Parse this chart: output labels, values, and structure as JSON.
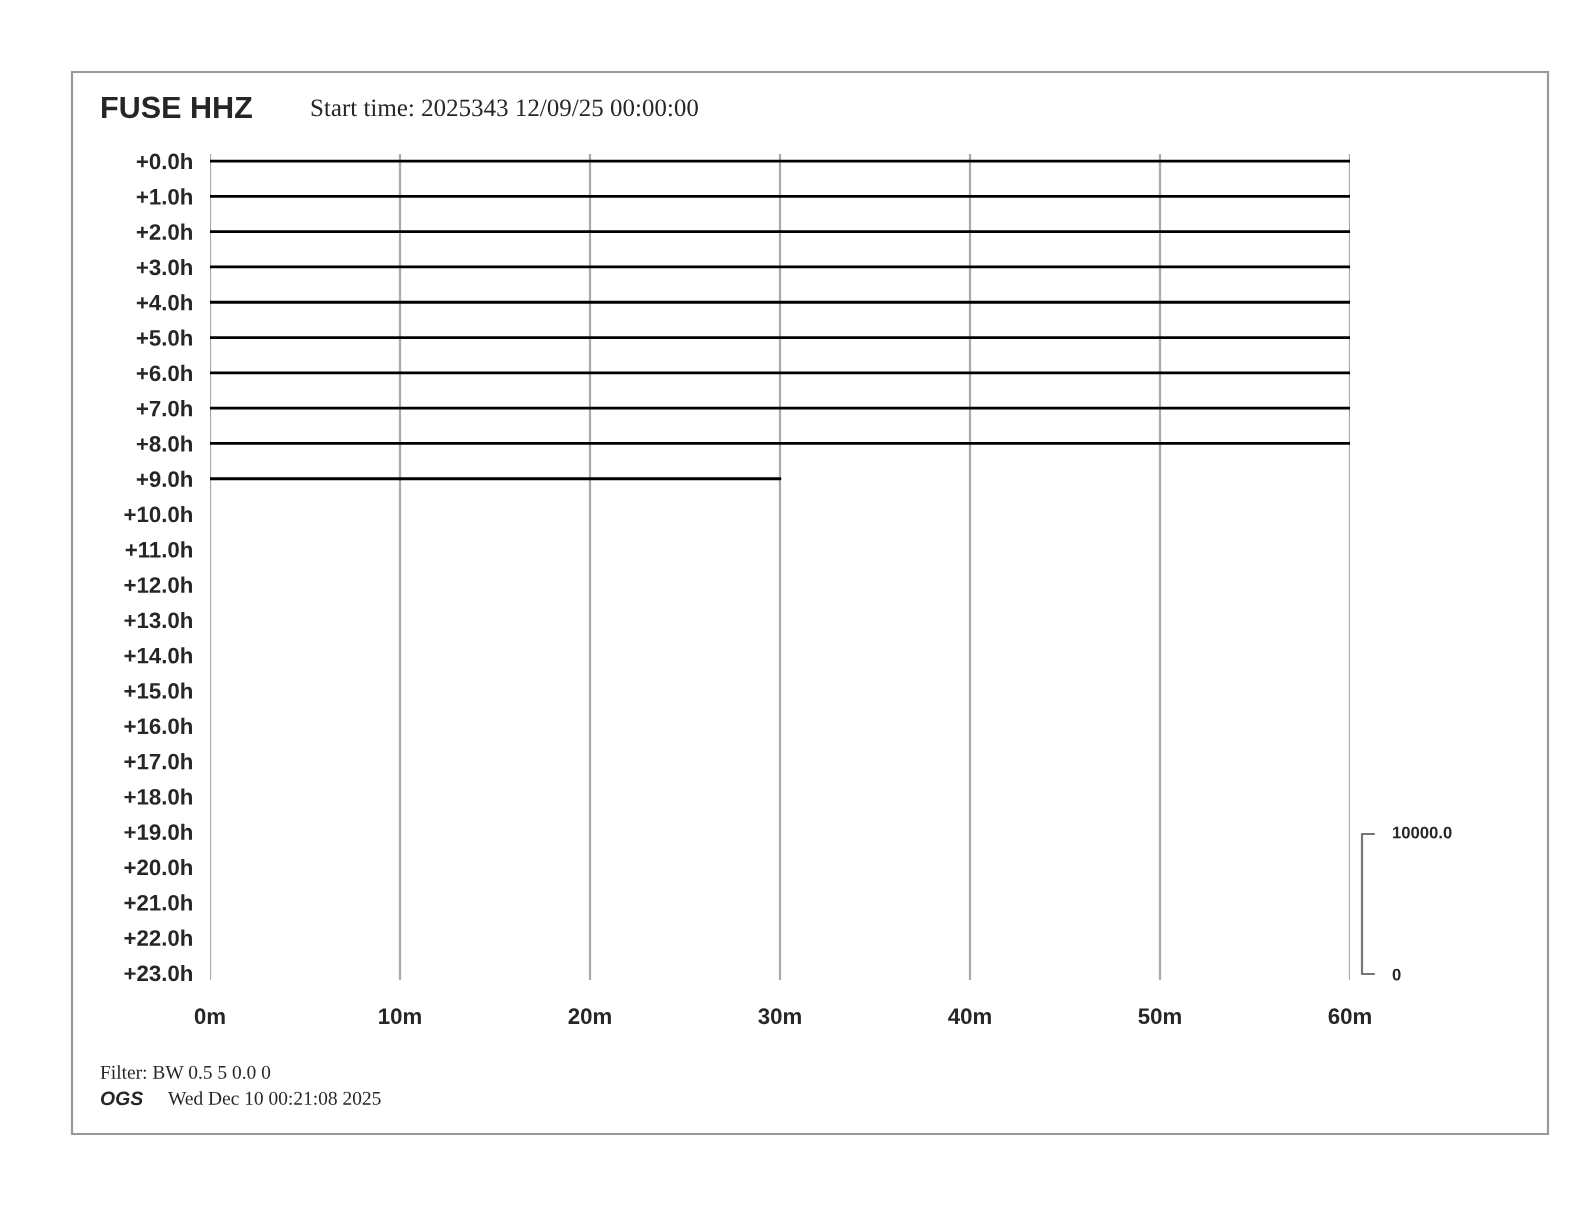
{
  "chart_data": {
    "type": "line",
    "title": "FUSE HHZ",
    "subtitle": "Start time: 2025343 12/09/25 00:00:00",
    "xlim": [
      0,
      60
    ],
    "xticks": [
      {
        "value": 0,
        "label": "0m"
      },
      {
        "value": 10,
        "label": "10m"
      },
      {
        "value": 20,
        "label": "20m"
      },
      {
        "value": 30,
        "label": "30m"
      },
      {
        "value": 40,
        "label": "40m"
      },
      {
        "value": 50,
        "label": "50m"
      },
      {
        "value": 60,
        "label": "60m"
      }
    ],
    "ylim": [
      23.2,
      -0.2
    ],
    "yticks": [
      {
        "value": 0,
        "label": "+0.0h"
      },
      {
        "value": 1,
        "label": "+1.0h"
      },
      {
        "value": 2,
        "label": "+2.0h"
      },
      {
        "value": 3,
        "label": "+3.0h"
      },
      {
        "value": 4,
        "label": "+4.0h"
      },
      {
        "value": 5,
        "label": "+5.0h"
      },
      {
        "value": 6,
        "label": "+6.0h"
      },
      {
        "value": 7,
        "label": "+7.0h"
      },
      {
        "value": 8,
        "label": "+8.0h"
      },
      {
        "value": 9,
        "label": "+9.0h"
      },
      {
        "value": 10,
        "label": "+10.0h"
      },
      {
        "value": 11,
        "label": "+11.0h"
      },
      {
        "value": 12,
        "label": "+12.0h"
      },
      {
        "value": 13,
        "label": "+13.0h"
      },
      {
        "value": 14,
        "label": "+14.0h"
      },
      {
        "value": 15,
        "label": "+15.0h"
      },
      {
        "value": 16,
        "label": "+16.0h"
      },
      {
        "value": 17,
        "label": "+17.0h"
      },
      {
        "value": 18,
        "label": "+18.0h"
      },
      {
        "value": 19,
        "label": "+19.0h"
      },
      {
        "value": 20,
        "label": "+20.0h"
      },
      {
        "value": 21,
        "label": "+21.0h"
      },
      {
        "value": 22,
        "label": "+22.0h"
      },
      {
        "value": 23,
        "label": "+23.0h"
      }
    ],
    "series": [
      {
        "color": "#000000",
        "x": [
          0,
          60
        ],
        "values": [
          0,
          0
        ]
      },
      {
        "color": "#000000",
        "x": [
          0,
          60
        ],
        "values": [
          1,
          1
        ]
      },
      {
        "color": "#000000",
        "x": [
          0,
          60
        ],
        "values": [
          2,
          2
        ]
      },
      {
        "color": "#000000",
        "x": [
          0,
          60
        ],
        "values": [
          3,
          3
        ]
      },
      {
        "color": "#000000",
        "x": [
          0,
          60
        ],
        "values": [
          4,
          4
        ]
      },
      {
        "color": "#000000",
        "x": [
          0,
          60
        ],
        "values": [
          5,
          5
        ]
      },
      {
        "color": "#000000",
        "x": [
          0,
          60
        ],
        "values": [
          6,
          6
        ]
      },
      {
        "color": "#000000",
        "x": [
          0,
          60
        ],
        "values": [
          7,
          7
        ]
      },
      {
        "color": "#000000",
        "x": [
          0,
          60
        ],
        "values": [
          8,
          8
        ]
      },
      {
        "color": "#000000",
        "x": [
          0,
          30
        ],
        "values": [
          9,
          9
        ]
      }
    ],
    "grid": "x",
    "legend": false,
    "marker": "none",
    "line_style": "solid",
    "annotations": [
      "10000.0",
      "0",
      "Filter: BW 0.5 5 0.0 0",
      "OGS",
      "Wed Dec 10 00:21:08 2025"
    ]
  }
}
